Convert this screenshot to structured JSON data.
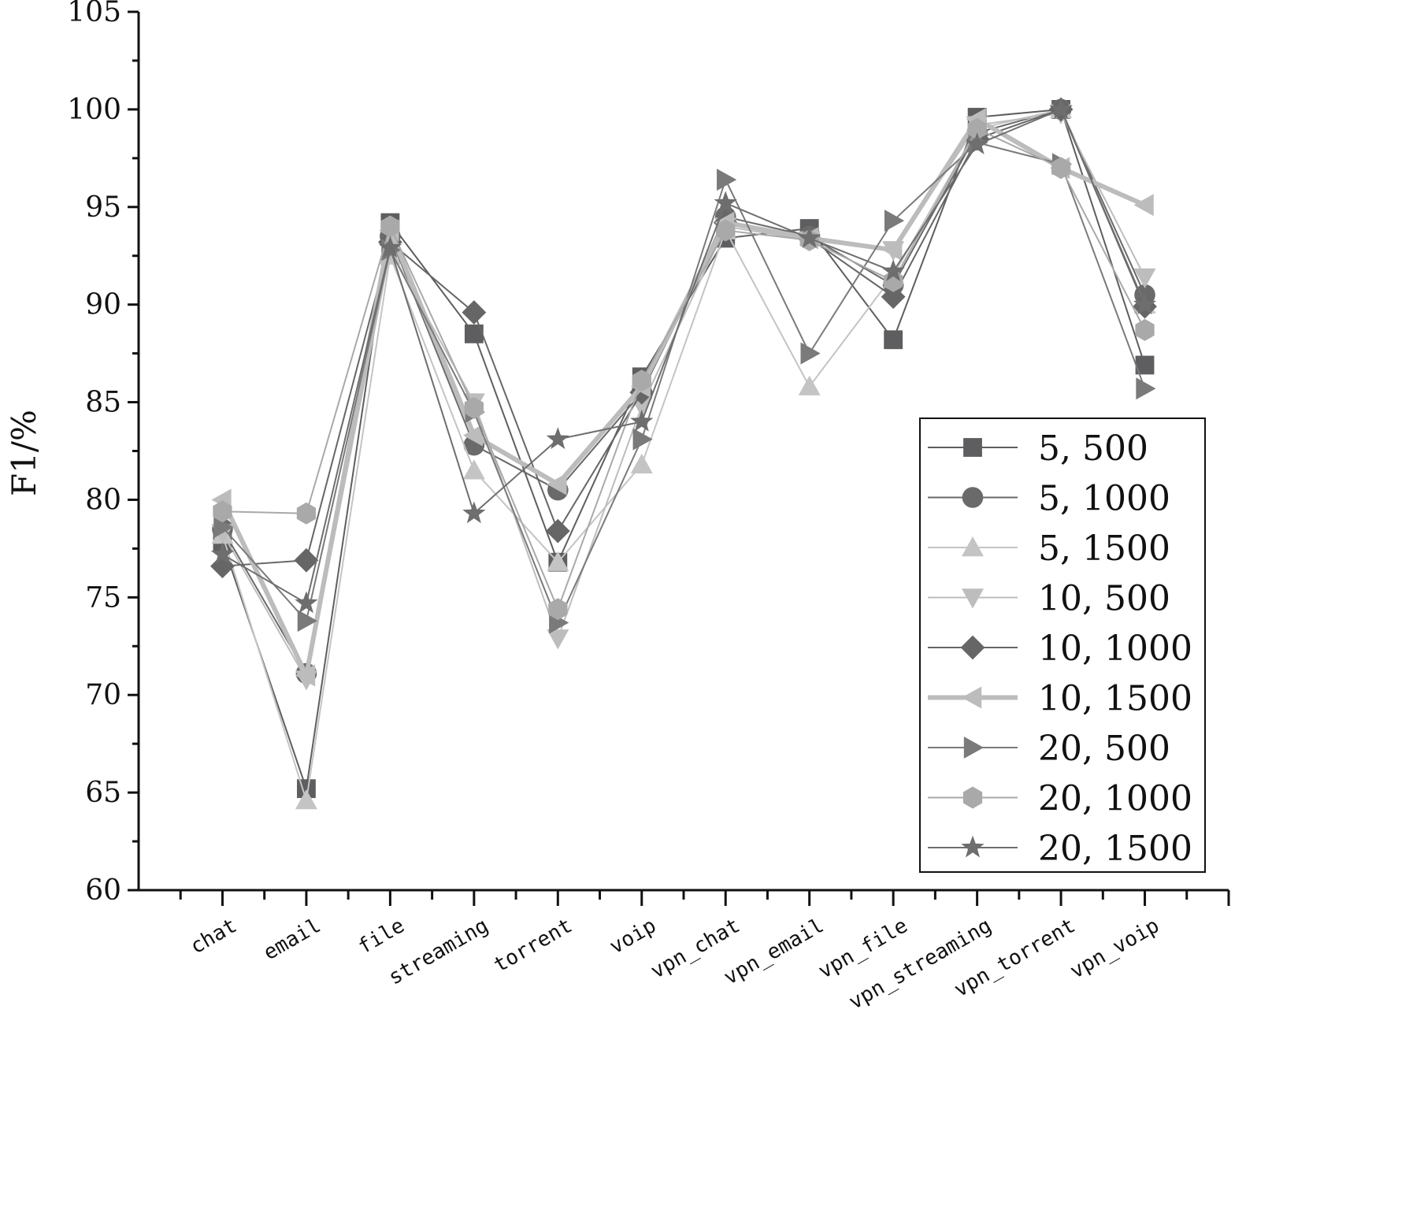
{
  "chart_data": {
    "type": "line",
    "title": "",
    "xlabel": "",
    "ylabel": "F1/%",
    "ylim": [
      60,
      105
    ],
    "yticks": [
      60,
      65,
      70,
      75,
      80,
      85,
      90,
      95,
      100,
      105
    ],
    "grid": false,
    "legend_position": "bottom-right",
    "categories": [
      "chat",
      "email",
      "file",
      "streaming",
      "torrent",
      "voip",
      "vpn_chat",
      "vpn_email",
      "vpn_file",
      "vpn_streaming",
      "vpn_torrent",
      "vpn_voip"
    ],
    "series": [
      {
        "name": "5, 500",
        "marker": "square",
        "color": "#5e5e60",
        "width": 2,
        "values": [
          77.8,
          65.2,
          94.2,
          88.5,
          76.8,
          86.3,
          93.4,
          93.9,
          88.2,
          99.6,
          100,
          86.9
        ]
      },
      {
        "name": "5, 1000",
        "marker": "circle",
        "color": "#6a6a6a",
        "width": 2,
        "values": [
          78.5,
          71.1,
          93.5,
          82.8,
          80.5,
          85.5,
          94.5,
          93.5,
          91.0,
          98.8,
          100,
          90.5
        ]
      },
      {
        "name": "5, 1500",
        "marker": "triangle-up",
        "color": "#c4c4c4",
        "width": 2,
        "values": [
          78.2,
          64.6,
          92.5,
          81.5,
          76.8,
          81.8,
          93.8,
          85.8,
          91.5,
          99.0,
          100,
          90.0
        ]
      },
      {
        "name": "10, 500",
        "marker": "triangle-down",
        "color": "#bdbdbd",
        "width": 2,
        "values": [
          78.3,
          70.8,
          92.8,
          85.0,
          72.9,
          84.8,
          94.0,
          93.3,
          92.8,
          99.2,
          99.8,
          91.4
        ]
      },
      {
        "name": "10, 1000",
        "marker": "diamond",
        "color": "#666666",
        "width": 2,
        "values": [
          76.6,
          76.9,
          93.2,
          89.6,
          78.4,
          85.5,
          94.2,
          93.4,
          90.4,
          98.5,
          100,
          89.9
        ]
      },
      {
        "name": "10, 1500",
        "marker": "triangle-left",
        "color": "#bcbcbc",
        "width": 6,
        "values": [
          80.0,
          71.0,
          93.8,
          83.3,
          80.8,
          85.8,
          94.2,
          93.4,
          92.8,
          99.5,
          97.0,
          95.1
        ]
      },
      {
        "name": "20, 500",
        "marker": "triangle-right",
        "color": "#7a7a7a",
        "width": 2,
        "values": [
          78.6,
          73.8,
          92.8,
          84.5,
          73.7,
          83.1,
          96.4,
          87.5,
          94.3,
          98.3,
          97.2,
          85.7
        ]
      },
      {
        "name": "20, 1000",
        "marker": "hexagon",
        "color": "#a9a9a9",
        "width": 2,
        "values": [
          79.4,
          79.3,
          94.0,
          84.7,
          74.4,
          86.1,
          93.8,
          93.3,
          91.2,
          99.0,
          97.0,
          88.7
        ]
      },
      {
        "name": "20, 1500",
        "marker": "star",
        "color": "#6e6e6e",
        "width": 2,
        "values": [
          77.2,
          74.7,
          92.9,
          79.3,
          83.1,
          84.0,
          95.2,
          93.4,
          91.7,
          98.2,
          100,
          90.0
        ]
      }
    ]
  }
}
